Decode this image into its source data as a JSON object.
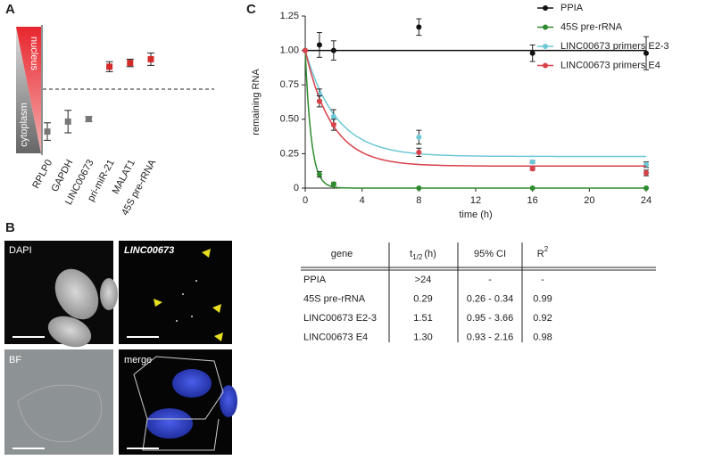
{
  "panel_labels": [
    "A",
    "B",
    "C"
  ],
  "chart_data": [
    {
      "type": "dot",
      "categories": [
        "RPLP0",
        "GAPDH",
        "LINC00673",
        "pri-miR-21",
        "MALAT1",
        "45S pre-rRNA"
      ],
      "values": [
        0.16,
        0.24,
        0.26,
        0.68,
        0.71,
        0.74
      ],
      "errors": [
        0.07,
        0.09,
        0.02,
        0.04,
        0.03,
        0.05
      ],
      "point_colors": [
        "#777777",
        "#777777",
        "#777777",
        "#d42a2a",
        "#d42a2a",
        "#d42a2a"
      ],
      "ylim": [
        0,
        1
      ],
      "threshold": 0.5,
      "region_labels": [
        "nucleus",
        "cytoplasm"
      ]
    },
    {
      "type": "line",
      "x_label": "time (h)",
      "y_label": "remaining RNA",
      "x": [
        0,
        1,
        2,
        8,
        16,
        24
      ],
      "xlim": [
        0,
        24
      ],
      "xticks": [
        0,
        4,
        8,
        12,
        16,
        20,
        24
      ],
      "ylim": [
        0,
        1.25
      ],
      "yticks": [
        0,
        0.25,
        {
          "value": 0.5,
          "label": "0.50"
        },
        0.75,
        {
          "value": 1,
          "label": "1.00"
        },
        1.25
      ],
      "legend": "top-right",
      "series": [
        {
          "name": "PPIA",
          "color": "#111111",
          "values": [
            1.0,
            1.04,
            1.0,
            1.17,
            0.98,
            0.98
          ],
          "errors": [
            0,
            0.09,
            0.07,
            0.06,
            0.06,
            0.12
          ],
          "fit": {
            "plateau": 1.0
          }
        },
        {
          "name": "45S pre-rRNA",
          "color": "#2e8b2e",
          "values": [
            1.0,
            0.1,
            0.03,
            0.0,
            0.0,
            0.0
          ],
          "errors": [
            0,
            0.02,
            0.01,
            0,
            0,
            0
          ],
          "fit": {
            "half_life": 0.29,
            "plateau": 0.0
          }
        },
        {
          "name": "LINC00673 primers E2-3",
          "color": "#6cc8d6",
          "values": [
            1.0,
            0.68,
            0.52,
            0.37,
            0.19,
            0.17
          ],
          "errors": [
            0,
            0.04,
            0.05,
            0.05,
            0.01,
            0.02
          ],
          "fit": {
            "half_life": 1.51,
            "plateau": 0.23
          }
        },
        {
          "name": "LINC00673 primers E4",
          "color": "#d8404a",
          "values": [
            1.0,
            0.63,
            0.46,
            0.26,
            0.14,
            0.11
          ],
          "errors": [
            0,
            0.04,
            0.04,
            0.03,
            0.01,
            0.02
          ],
          "fit": {
            "half_life": 1.3,
            "plateau": 0.16
          }
        }
      ]
    }
  ],
  "images": [
    "DAPI",
    "LINC00673",
    "BF",
    "merge"
  ],
  "table": {
    "header": [
      "gene",
      {
        "main": "t",
        "sub": "1/2",
        "rest": "(h)"
      },
      "95% CI",
      {
        "main": "R",
        "sup": "2"
      }
    ],
    "rows": [
      [
        "PPIA",
        ">24",
        "-",
        "-"
      ],
      [
        "45S pre-rRNA",
        "0.29",
        "0.26 - 0.34",
        "0.99"
      ],
      [
        "LINC00673 E2-3",
        "1.51",
        "0.95 - 3.66",
        "0.92"
      ],
      [
        "LINC00673 E4",
        "1.30",
        "0.93 - 2.16",
        "0.98"
      ]
    ]
  }
}
